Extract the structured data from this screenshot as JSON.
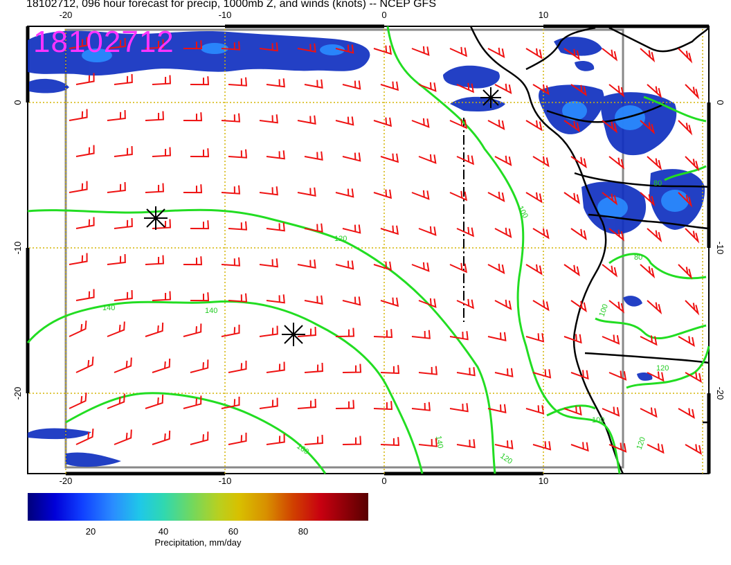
{
  "title": "18102712, 096 hour forecast for precip, 1000mb Z, and winds (knots) -- NCEP GFS",
  "stamp": "18102712",
  "axes": {
    "top_labels": [
      "-20",
      "-10",
      "0",
      "10"
    ],
    "bottom_labels": [
      "-20",
      "-10",
      "0",
      "10"
    ],
    "left_labels": [
      "0",
      "-10",
      "-20"
    ],
    "right_labels": [
      "0",
      "-10",
      "-20"
    ]
  },
  "contour_labels": [
    "120",
    "100",
    "140",
    "140",
    "160",
    "140",
    "120",
    "100",
    "80",
    "100",
    "120",
    "120",
    "80"
  ],
  "colorbar": {
    "ticks": [
      "20",
      "40",
      "60",
      "80"
    ],
    "label": "Precipitation, mm/day"
  },
  "colors": {
    "contour": "#22dd22",
    "wind": "#ee1111",
    "precip": "#1030c0",
    "stamp": "#ff33ff"
  },
  "icons": [
    "low-pressure-star-icon",
    "high-pressure-star-icon",
    "cyclone-star-icon"
  ]
}
